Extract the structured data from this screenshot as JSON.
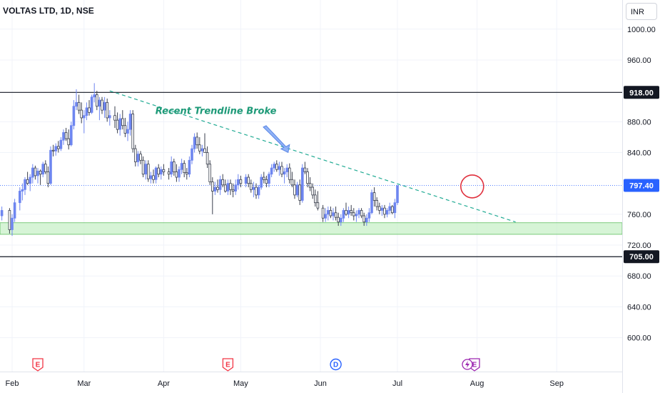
{
  "header": {
    "title": "VOLTAS LTD, 1D, NSE"
  },
  "toolbar": {
    "currency_label": "INR"
  },
  "chart_data": {
    "type": "candlestick",
    "symbol": "VOLTAS LTD",
    "interval": "1D",
    "exchange": "NSE",
    "y_ticks": [
      "1000.00",
      "960.00",
      "880.00",
      "840.00",
      "760.00",
      "720.00",
      "680.00",
      "640.00",
      "600.00"
    ],
    "ylim": [
      582,
      1010
    ],
    "x_ticks": [
      {
        "label": "Feb",
        "day": 0
      },
      {
        "label": "Mar",
        "day": 28
      },
      {
        "label": "Apr",
        "day": 59
      },
      {
        "label": "May",
        "day": 89
      },
      {
        "label": "Jun",
        "day": 120
      },
      {
        "label": "Jul",
        "day": 150
      },
      {
        "label": "Aug",
        "day": 181
      },
      {
        "label": "Sep",
        "day": 212
      }
    ],
    "xlim": [
      -5,
      230
    ],
    "price_levels": [
      {
        "value": 918.0,
        "label": "918.00",
        "color": "#131722",
        "style": "solid"
      },
      {
        "value": 705.0,
        "label": "705.00",
        "color": "#131722",
        "style": "solid"
      },
      {
        "value": 797.4,
        "label": "797.40",
        "color": "#2962ff",
        "style": "dotted"
      }
    ],
    "support_zone": {
      "from": 734,
      "to": 749,
      "color": "#c8f0c8"
    },
    "trendline": {
      "start": {
        "day": 38,
        "price": 920
      },
      "end": {
        "day": 196,
        "price": 750
      },
      "color": "#22ab94"
    },
    "annotation": {
      "text": "Recent Trendline Broke",
      "day": 78,
      "price": 892,
      "color": "#1e9a78"
    },
    "arrow": {
      "from": {
        "day": 100,
        "price": 873
      },
      "to": {
        "day": 108,
        "price": 842
      }
    },
    "highlight_circle": {
      "day": 178,
      "price": 797,
      "color": "#e0303d"
    },
    "events": [
      {
        "label": "E",
        "day": 10,
        "color": "#f23645"
      },
      {
        "label": "E",
        "day": 84,
        "color": "#f23645"
      },
      {
        "label": "D",
        "day": 126,
        "color": "#2962ff"
      },
      {
        "label": "E",
        "day": 180,
        "color": "#9c27b0"
      }
    ],
    "candles": [
      [
        -4,
        758,
        770,
        752,
        765
      ],
      [
        -1,
        765,
        768,
        735,
        740
      ],
      [
        0,
        740,
        760,
        732,
        755
      ],
      [
        1,
        755,
        780,
        750,
        775
      ],
      [
        3,
        775,
        795,
        765,
        790
      ],
      [
        4,
        790,
        800,
        778,
        792
      ],
      [
        5,
        792,
        808,
        785,
        805
      ],
      [
        6,
        805,
        815,
        798,
        800
      ],
      [
        7,
        800,
        812,
        790,
        808
      ],
      [
        8,
        808,
        825,
        800,
        820
      ],
      [
        9,
        820,
        823,
        805,
        810
      ],
      [
        10,
        810,
        820,
        800,
        816
      ],
      [
        11,
        816,
        818,
        798,
        812
      ],
      [
        12,
        812,
        828,
        808,
        825
      ],
      [
        13,
        825,
        830,
        812,
        815
      ],
      [
        14,
        815,
        822,
        795,
        800
      ],
      [
        15,
        800,
        848,
        798,
        843
      ],
      [
        16,
        843,
        850,
        835,
        842
      ],
      [
        17,
        842,
        852,
        836,
        848
      ],
      [
        18,
        848,
        855,
        840,
        845
      ],
      [
        19,
        845,
        860,
        842,
        856
      ],
      [
        20,
        856,
        870,
        850,
        866
      ],
      [
        21,
        866,
        872,
        855,
        858
      ],
      [
        22,
        858,
        870,
        844,
        850
      ],
      [
        23,
        850,
        880,
        848,
        875
      ],
      [
        24,
        875,
        908,
        870,
        900
      ],
      [
        25,
        900,
        922,
        895,
        905
      ],
      [
        26,
        905,
        915,
        890,
        895
      ],
      [
        27,
        895,
        905,
        878,
        885
      ],
      [
        28,
        885,
        895,
        865,
        888
      ],
      [
        29,
        888,
        905,
        882,
        898
      ],
      [
        30,
        898,
        908,
        888,
        892
      ],
      [
        31,
        892,
        915,
        890,
        912
      ],
      [
        32,
        912,
        930,
        905,
        915
      ],
      [
        33,
        915,
        920,
        895,
        900
      ],
      [
        34,
        900,
        912,
        882,
        908
      ],
      [
        35,
        908,
        912,
        890,
        895
      ],
      [
        36,
        895,
        912,
        885,
        905
      ],
      [
        37,
        905,
        910,
        880,
        885
      ],
      [
        38,
        885,
        895,
        875,
        888
      ],
      [
        40,
        888,
        900,
        872,
        882
      ],
      [
        41,
        882,
        892,
        865,
        870
      ],
      [
        42,
        870,
        890,
        862,
        884
      ],
      [
        43,
        884,
        895,
        870,
        875
      ],
      [
        44,
        875,
        885,
        860,
        865
      ],
      [
        45,
        865,
        880,
        855,
        870
      ],
      [
        46,
        870,
        895,
        862,
        890
      ],
      [
        47,
        890,
        895,
        840,
        845
      ],
      [
        48,
        845,
        850,
        822,
        828
      ],
      [
        49,
        828,
        842,
        822,
        838
      ],
      [
        50,
        838,
        842,
        825,
        830
      ],
      [
        51,
        830,
        835,
        808,
        812
      ],
      [
        52,
        812,
        830,
        805,
        825
      ],
      [
        53,
        825,
        830,
        802,
        806
      ],
      [
        54,
        806,
        815,
        800,
        810
      ],
      [
        55,
        810,
        818,
        800,
        805
      ],
      [
        56,
        805,
        822,
        800,
        820
      ],
      [
        57,
        820,
        825,
        808,
        812
      ],
      [
        58,
        812,
        822,
        805,
        818
      ],
      [
        59,
        818,
        825,
        810,
        815
      ],
      [
        61,
        815,
        820,
        805,
        812
      ],
      [
        62,
        812,
        835,
        808,
        828
      ],
      [
        63,
        828,
        832,
        810,
        815
      ],
      [
        64,
        815,
        825,
        802,
        808
      ],
      [
        65,
        808,
        822,
        802,
        818
      ],
      [
        66,
        818,
        832,
        812,
        826
      ],
      [
        67,
        826,
        830,
        808,
        814
      ],
      [
        68,
        814,
        820,
        805,
        812
      ],
      [
        69,
        812,
        835,
        808,
        830
      ],
      [
        70,
        830,
        850,
        825,
        845
      ],
      [
        71,
        845,
        865,
        840,
        860
      ],
      [
        72,
        860,
        866,
        845,
        850
      ],
      [
        73,
        850,
        860,
        838,
        842
      ],
      [
        74,
        842,
        850,
        835,
        845
      ],
      [
        75,
        845,
        865,
        840,
        840
      ],
      [
        76,
        840,
        848,
        820,
        825
      ],
      [
        77,
        825,
        830,
        798,
        802
      ],
      [
        78,
        802,
        808,
        760,
        790
      ],
      [
        79,
        790,
        802,
        785,
        795
      ],
      [
        80,
        795,
        805,
        788,
        792
      ],
      [
        81,
        792,
        810,
        785,
        805
      ],
      [
        82,
        805,
        812,
        795,
        798
      ],
      [
        83,
        798,
        805,
        788,
        790
      ],
      [
        84,
        790,
        805,
        785,
        800
      ],
      [
        85,
        800,
        805,
        785,
        792
      ],
      [
        86,
        792,
        800,
        782,
        790
      ],
      [
        87,
        790,
        805,
        785,
        798
      ],
      [
        88,
        798,
        812,
        792,
        805
      ],
      [
        89,
        805,
        810,
        795,
        800
      ],
      [
        91,
        800,
        812,
        795,
        808
      ],
      [
        92,
        808,
        812,
        795,
        800
      ],
      [
        93,
        800,
        805,
        788,
        792
      ],
      [
        94,
        792,
        802,
        782,
        795
      ],
      [
        95,
        795,
        800,
        780,
        785
      ],
      [
        96,
        785,
        798,
        780,
        795
      ],
      [
        97,
        795,
        812,
        792,
        808
      ],
      [
        98,
        808,
        815,
        800,
        805
      ],
      [
        99,
        805,
        810,
        795,
        800
      ],
      [
        100,
        800,
        815,
        795,
        812
      ],
      [
        101,
        812,
        825,
        808,
        820
      ],
      [
        102,
        820,
        828,
        815,
        825
      ],
      [
        103,
        825,
        830,
        815,
        818
      ],
      [
        104,
        818,
        828,
        810,
        822
      ],
      [
        105,
        822,
        828,
        808,
        812
      ],
      [
        106,
        812,
        820,
        800,
        815
      ],
      [
        107,
        815,
        825,
        808,
        820
      ],
      [
        108,
        820,
        826,
        800,
        805
      ],
      [
        109,
        805,
        815,
        795,
        798
      ],
      [
        110,
        798,
        805,
        780,
        785
      ],
      [
        111,
        785,
        802,
        782,
        798
      ],
      [
        112,
        798,
        805,
        772,
        778
      ],
      [
        113,
        778,
        825,
        775,
        820
      ],
      [
        114,
        820,
        828,
        812,
        815
      ],
      [
        115,
        815,
        820,
        795,
        800
      ],
      [
        116,
        800,
        808,
        790,
        795
      ],
      [
        117,
        795,
        800,
        780,
        785
      ],
      [
        118,
        785,
        792,
        770,
        775
      ],
      [
        119,
        775,
        790,
        765,
        768
      ],
      [
        121,
        768,
        772,
        750,
        755
      ],
      [
        122,
        755,
        768,
        750,
        760
      ],
      [
        123,
        760,
        770,
        752,
        765
      ],
      [
        124,
        765,
        770,
        755,
        758
      ],
      [
        125,
        758,
        768,
        752,
        762
      ],
      [
        126,
        762,
        770,
        752,
        756
      ],
      [
        127,
        756,
        762,
        745,
        750
      ],
      [
        128,
        750,
        760,
        745,
        755
      ],
      [
        129,
        755,
        768,
        750,
        765
      ],
      [
        130,
        765,
        775,
        758,
        760
      ],
      [
        131,
        760,
        770,
        755,
        765
      ],
      [
        132,
        765,
        772,
        758,
        762
      ],
      [
        133,
        762,
        768,
        752,
        758
      ],
      [
        134,
        758,
        765,
        750,
        760
      ],
      [
        135,
        760,
        768,
        755,
        765
      ],
      [
        136,
        765,
        768,
        755,
        758
      ],
      [
        137,
        758,
        762,
        745,
        750
      ],
      [
        138,
        750,
        760,
        745,
        755
      ],
      [
        139,
        755,
        768,
        750,
        762
      ],
      [
        140,
        762,
        792,
        760,
        788
      ],
      [
        141,
        788,
        795,
        770,
        778
      ],
      [
        142,
        778,
        782,
        765,
        770
      ],
      [
        143,
        770,
        775,
        760,
        765
      ],
      [
        144,
        765,
        772,
        758,
        768
      ],
      [
        145,
        768,
        772,
        755,
        760
      ],
      [
        146,
        760,
        768,
        756,
        765
      ],
      [
        147,
        765,
        775,
        760,
        770
      ],
      [
        148,
        770,
        772,
        760,
        762
      ],
      [
        149,
        762,
        780,
        755,
        775
      ],
      [
        150,
        775,
        798,
        772,
        797
      ]
    ]
  }
}
